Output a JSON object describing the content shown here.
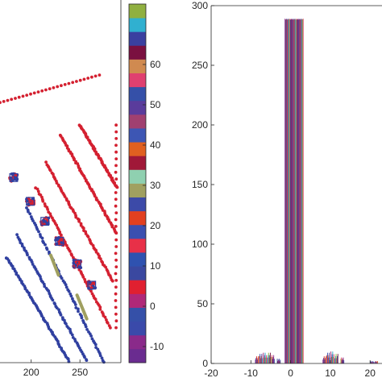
{
  "chart_data": [
    {
      "type": "scatter",
      "title": "",
      "xlabel": "",
      "ylabel": "",
      "x_ticks": [
        200,
        250
      ],
      "xlim": [
        168,
        292
      ],
      "ylim": [
        0,
        290
      ],
      "y_reversed": true,
      "grid": false,
      "note": "sparse-matrix style pattern of red and blue dots; cut off on the left edge",
      "diagonal_bands": [
        {
          "color": "#3040a0",
          "x0": 175,
          "y0": 206,
          "x1": 240,
          "y1": 290
        },
        {
          "color": "#3040a0",
          "x0": 185,
          "y0": 188,
          "x1": 258,
          "y1": 290
        },
        {
          "color": "#3040a0",
          "x0": 195,
          "y0": 166,
          "x1": 275,
          "y1": 290
        },
        {
          "color": "#d42030",
          "x0": 205,
          "y0": 150,
          "x1": 281,
          "y1": 262
        },
        {
          "color": "#d42030",
          "x0": 215,
          "y0": 130,
          "x1": 284,
          "y1": 225
        },
        {
          "color": "#d42030",
          "x0": 230,
          "y0": 108,
          "x1": 287,
          "y1": 186
        },
        {
          "color": "#d42030",
          "x0": 250,
          "y0": 100,
          "x1": 288,
          "y1": 150
        }
      ],
      "top_row": {
        "color": "#d42030",
        "x0": 168,
        "y0": 82,
        "x1": 270,
        "y1": 60
      },
      "right_column": {
        "color": "#d42030",
        "x": 287,
        "y0": 100,
        "y1": 262
      },
      "blocks": [
        {
          "x": 182,
          "y": 142,
          "size": 8
        },
        {
          "x": 199,
          "y": 161,
          "size": 8
        },
        {
          "x": 214,
          "y": 177,
          "size": 8
        },
        {
          "x": 229,
          "y": 193,
          "size": 8
        },
        {
          "x": 247,
          "y": 211,
          "size": 8
        },
        {
          "x": 262,
          "y": 228,
          "size": 8
        }
      ],
      "green_bars": [
        {
          "x0": 220,
          "y0": 204,
          "x1": 228,
          "y1": 220
        },
        {
          "x0": 247,
          "y0": 236,
          "x1": 257,
          "y1": 255
        }
      ]
    },
    {
      "type": "colorbar",
      "ticks": [
        -10,
        0,
        10,
        20,
        30,
        40,
        50,
        60
      ],
      "range": [
        -14,
        75
      ],
      "colors": [
        "#6a2c90",
        "#8a2a8a",
        "#3a4aaa",
        "#3550a8",
        "#b02878",
        "#e02030",
        "#3a48a0",
        "#2f52b0",
        "#e83048",
        "#3b4fb0",
        "#e24020",
        "#3c4aa8",
        "#a0a060",
        "#8fd0b0",
        "#a01838",
        "#e06020",
        "#3d56b4",
        "#a04070",
        "#5a3c9c",
        "#3550a8",
        "#e04070",
        "#d08a50",
        "#7a1040",
        "#3a40a0",
        "#30b0d0",
        "#90b040"
      ]
    },
    {
      "type": "bar",
      "title": "",
      "xlabel": "",
      "ylabel": "",
      "x_ticks": [
        -20,
        -10,
        0,
        10,
        20
      ],
      "y_ticks": [
        0,
        50,
        100,
        150,
        200,
        250,
        300
      ],
      "xlim": [
        -20,
        23
      ],
      "ylim": [
        0,
        300
      ],
      "grid": false,
      "series_colors": [
        "#8a2c8a",
        "#3a48a8",
        "#d42a30",
        "#3a56b0",
        "#a22e78",
        "#d06a30",
        "#5a3e9e",
        "#2fa8c8",
        "#8fb43a",
        "#e04268",
        "#35509e",
        "#7a1a44"
      ],
      "peak": {
        "x_from": -1.5,
        "x_to": 3.2,
        "value": 289
      },
      "small_bars": [
        {
          "x": -8.5,
          "value": 6
        },
        {
          "x": -7.5,
          "value": 8
        },
        {
          "x": -6.5,
          "value": 9
        },
        {
          "x": -5.5,
          "value": 9
        },
        {
          "x": -4.5,
          "value": 7
        },
        {
          "x": -3.0,
          "value": 4
        },
        {
          "x": 8.5,
          "value": 6
        },
        {
          "x": 9.5,
          "value": 9
        },
        {
          "x": 10.5,
          "value": 10
        },
        {
          "x": 11.5,
          "value": 8
        },
        {
          "x": 13.0,
          "value": 5
        },
        {
          "x": 20.5,
          "value": 2
        },
        {
          "x": 21.5,
          "value": 2
        }
      ]
    }
  ]
}
